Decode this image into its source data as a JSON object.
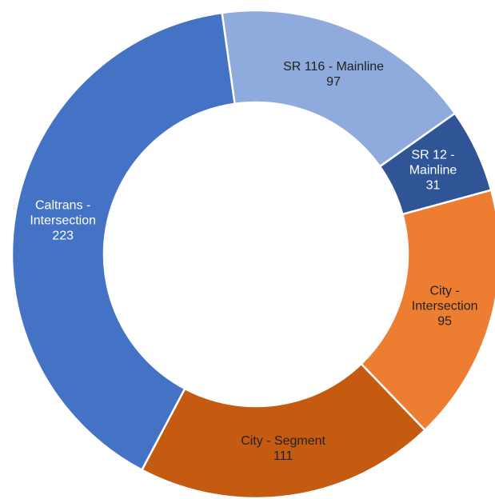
{
  "chart_data": {
    "type": "donut",
    "categories": [
      "SR 116 - Mainline",
      "SR 12 - Mainline",
      "City - Intersection",
      "City - Segment",
      "Caltrans - Intersection"
    ],
    "values": [
      97,
      31,
      95,
      111,
      223
    ],
    "colors": [
      "#8faadc",
      "#2f5597",
      "#ed7d31",
      "#c55a11",
      "#4472c4"
    ]
  }
}
